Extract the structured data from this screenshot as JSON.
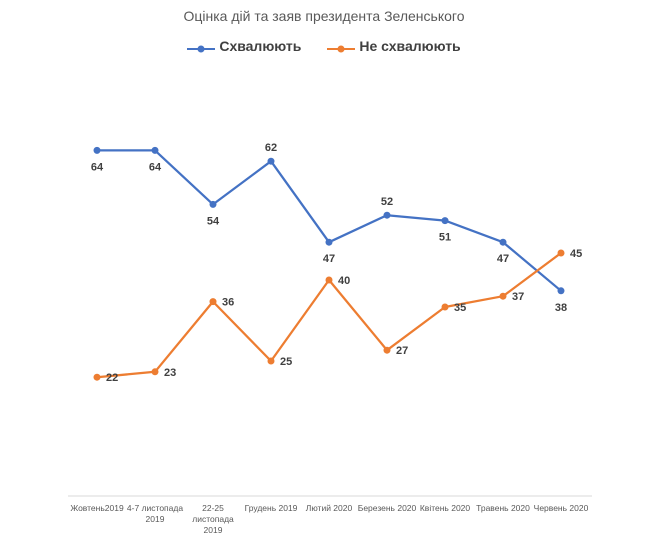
{
  "chart_data": {
    "type": "line",
    "title": "Оцінка дій та заяв президента Зеленського",
    "categories": [
      [
        "Жовтень2019"
      ],
      [
        "4-7 листопада",
        "2019"
      ],
      [
        "22-25",
        "листопада",
        "2019"
      ],
      [
        "Грудень 2019"
      ],
      [
        "Лютий 2020"
      ],
      [
        "Березень 2020"
      ],
      [
        "Квітень 2020"
      ],
      [
        "Травень 2020"
      ],
      [
        "Червень 2020"
      ]
    ],
    "series": [
      {
        "name": "Схвалюють",
        "color": "#4472C4",
        "values": [
          64,
          64,
          54,
          62,
          47,
          52,
          51,
          47,
          38
        ]
      },
      {
        "name": "Не схвалюють",
        "color": "#ED7D31",
        "values": [
          22,
          23,
          36,
          25,
          40,
          27,
          35,
          37,
          45
        ]
      }
    ],
    "ylim": [
      0,
      80
    ],
    "grid": false,
    "legend": "top",
    "data_labels": true
  }
}
